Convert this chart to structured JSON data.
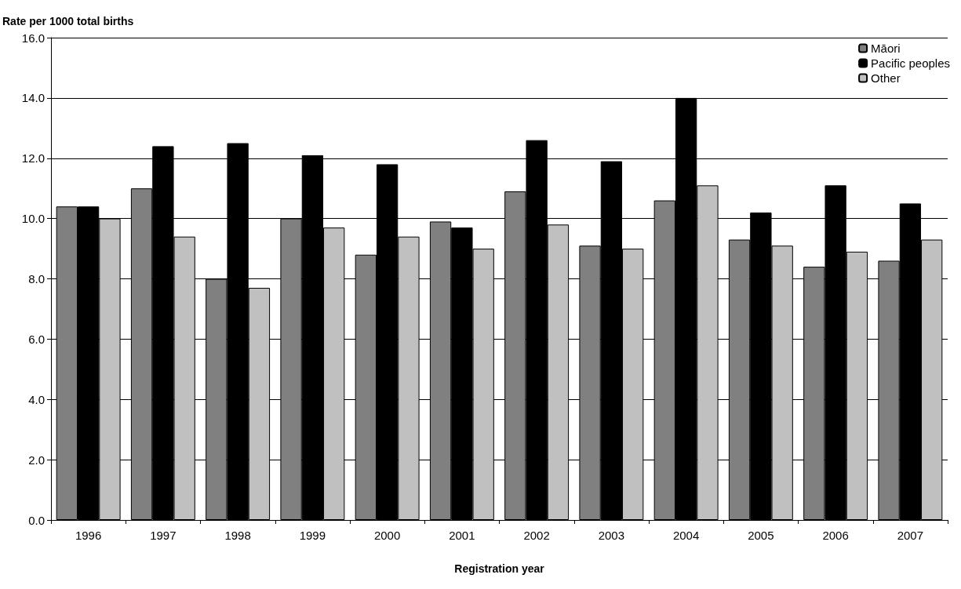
{
  "chart_data": {
    "type": "bar",
    "ylabel": "Rate per 1000 total births",
    "xlabel": "Registration year",
    "categories": [
      "1996",
      "1997",
      "1998",
      "1999",
      "2000",
      "2001",
      "2002",
      "2003",
      "2004",
      "2005",
      "2006",
      "2007"
    ],
    "series": [
      {
        "name": "Māori",
        "color": "#808080",
        "values": [
          10.4,
          11.0,
          8.0,
          10.0,
          8.8,
          9.9,
          10.9,
          9.1,
          10.6,
          9.3,
          8.4,
          8.6
        ]
      },
      {
        "name": "Pacific peoples",
        "color": "#000000",
        "values": [
          10.4,
          12.4,
          12.5,
          12.1,
          11.8,
          9.7,
          12.6,
          11.9,
          14.0,
          10.2,
          11.1,
          10.5
        ]
      },
      {
        "name": "Other",
        "color": "#c0c0c0",
        "values": [
          10.0,
          9.4,
          7.7,
          9.7,
          9.4,
          9.0,
          9.8,
          9.0,
          11.1,
          9.1,
          8.9,
          9.3
        ]
      }
    ],
    "ylim": [
      0,
      16
    ],
    "yticks": [
      {
        "value": 0,
        "label": "0.0"
      },
      {
        "value": 2,
        "label": "2.0"
      },
      {
        "value": 4,
        "label": "4.0"
      },
      {
        "value": 6,
        "label": "6.0"
      },
      {
        "value": 8,
        "label": "8.0"
      },
      {
        "value": 10,
        "label": "10.0"
      },
      {
        "value": 12,
        "label": "12.0"
      },
      {
        "value": 14,
        "label": "14.0"
      },
      {
        "value": 16,
        "label": "16.0"
      }
    ],
    "grid": "y",
    "legend": "top right"
  }
}
